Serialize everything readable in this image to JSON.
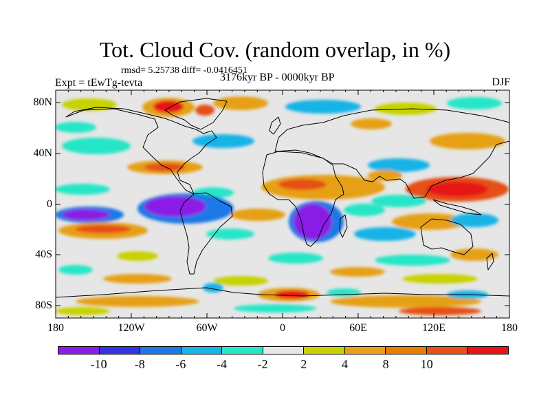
{
  "title": "Tot. Cloud Cov. (random overlap, in %)",
  "stats": "rmsd= 5.25738 diff= -0.0416451",
  "experiment": "Expt = tEwTg-tevta",
  "period": "3176kyr BP - 0000kyr BP",
  "season": "DJF",
  "map": {
    "lat_labels": [
      "80N",
      "40N",
      "0",
      "40S",
      "80S"
    ],
    "lon_labels": [
      "180",
      "120W",
      "60W",
      "0",
      "60E",
      "120E",
      "180"
    ]
  },
  "legend": {
    "levels": [
      "-10",
      "-8",
      "-6",
      "-4",
      "-2",
      "2",
      "4",
      "8",
      "10"
    ],
    "colors": [
      "#8a1ee6",
      "#3333e6",
      "#1e78e6",
      "#19b4e6",
      "#26e6c8",
      "#e6e6e6",
      "#c8d200",
      "#e6a019",
      "#e67d00",
      "#e65014",
      "#e61414"
    ]
  }
}
